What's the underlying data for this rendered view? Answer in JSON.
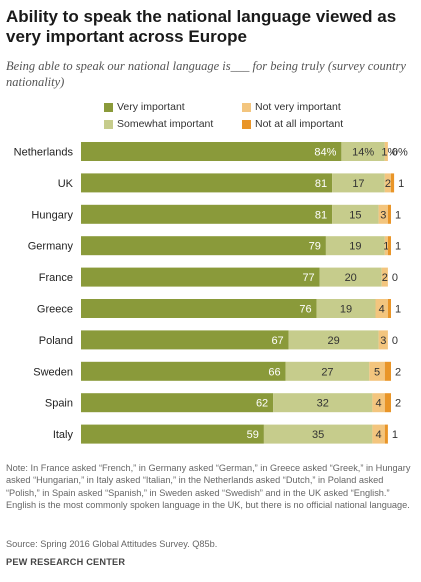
{
  "title": "Ability to speak the national language  viewed as very important across Europe",
  "subtitle": "Being able to speak our national language is___ for being truly (survey country nationality)",
  "colors": {
    "very_important": "#8a9a3a",
    "somewhat_important": "#c6cc8c",
    "not_very_important": "#f3c57e",
    "not_at_all_important": "#e99528"
  },
  "legend": [
    {
      "label": "Very important",
      "color": "#8a9a3a"
    },
    {
      "label": "Not very important",
      "color": "#f3c57e"
    },
    {
      "label": "Somewhat important",
      "color": "#c6cc8c"
    },
    {
      "label": "Not at all important",
      "color": "#e99528"
    }
  ],
  "chart_data": {
    "type": "bar",
    "orientation": "horizontal",
    "stacked": true,
    "categories": [
      "Netherlands",
      "UK",
      "Hungary",
      "Germany",
      "France",
      "Greece",
      "Poland",
      "Sweden",
      "Spain",
      "Italy"
    ],
    "series": [
      {
        "name": "Very important",
        "values": [
          84,
          81,
          81,
          79,
          77,
          76,
          67,
          66,
          62,
          59
        ]
      },
      {
        "name": "Somewhat important",
        "values": [
          14,
          17,
          15,
          19,
          20,
          19,
          29,
          27,
          32,
          35
        ]
      },
      {
        "name": "Not very important",
        "values": [
          1,
          2,
          3,
          1,
          2,
          4,
          3,
          5,
          4,
          4
        ]
      },
      {
        "name": "Not at all important",
        "values": [
          0,
          1,
          1,
          1,
          0,
          1,
          0,
          2,
          2,
          1
        ]
      }
    ],
    "labels": [
      [
        "84%",
        "14%",
        "1%",
        "0%"
      ],
      [
        "81",
        "17",
        "2",
        "1"
      ],
      [
        "81",
        "15",
        "3",
        "1"
      ],
      [
        "79",
        "19",
        "1",
        "1"
      ],
      [
        "77",
        "20",
        "2",
        "0"
      ],
      [
        "76",
        "19",
        "4",
        "1"
      ],
      [
        "67",
        "29",
        "3",
        "0"
      ],
      [
        "66",
        "27",
        "5",
        "2"
      ],
      [
        "62",
        "32",
        "4",
        "2"
      ],
      [
        "59",
        "35",
        "4",
        "1"
      ]
    ],
    "xlim": [
      0,
      100
    ]
  },
  "note": "Note: In France asked “French,” in Germany asked “German,” in Greece asked “Greek,” in Hungary asked “Hungarian,” in Italy asked “Italian,” in the Netherlands asked “Dutch,” in Poland asked “Polish,” in Spain asked “Spanish,” in Sweden asked “Swedish” and in the UK asked “English.” English is the most commonly spoken language in the UK, but there is no official national language.",
  "source": "Source: Spring 2016 Global Attitudes Survey. Q85b.",
  "org": "PEW RESEARCH CENTER"
}
